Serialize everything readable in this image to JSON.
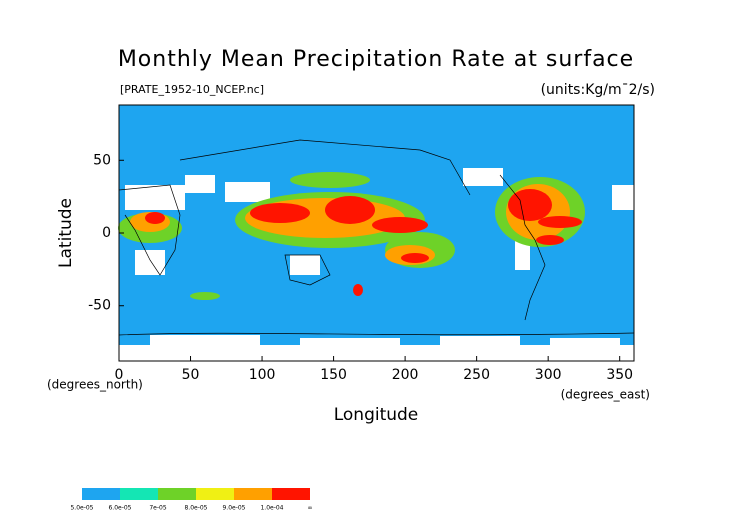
{
  "chart_data": {
    "type": "map",
    "title": "Monthly Mean Precipitation Rate at surface",
    "subtitle": "[PRATE_1952-10_NCEP.nc]",
    "units": "(units:Kg/m¯2/s)",
    "x_label": "Longitude",
    "y_label": "Latitude",
    "x_unit": "(degrees_east)",
    "y_unit": "(degrees_north)",
    "xlim": [
      0,
      360
    ],
    "ylim": [
      -88,
      88
    ],
    "xticks": [
      0,
      50,
      100,
      150,
      200,
      250,
      300,
      350
    ],
    "yticks": [
      -50,
      0,
      50
    ],
    "colorbar": {
      "labels": [
        "5.0e-05",
        "6.0e-05",
        "7e-05",
        "8.0e-05",
        "9.0e-05",
        "1.0e-04",
        "∞"
      ],
      "colors": [
        "#1ea5f0",
        "#14e6b4",
        "#6ed228",
        "#f0f014",
        "#ffa000",
        "#ff1400"
      ]
    }
  }
}
